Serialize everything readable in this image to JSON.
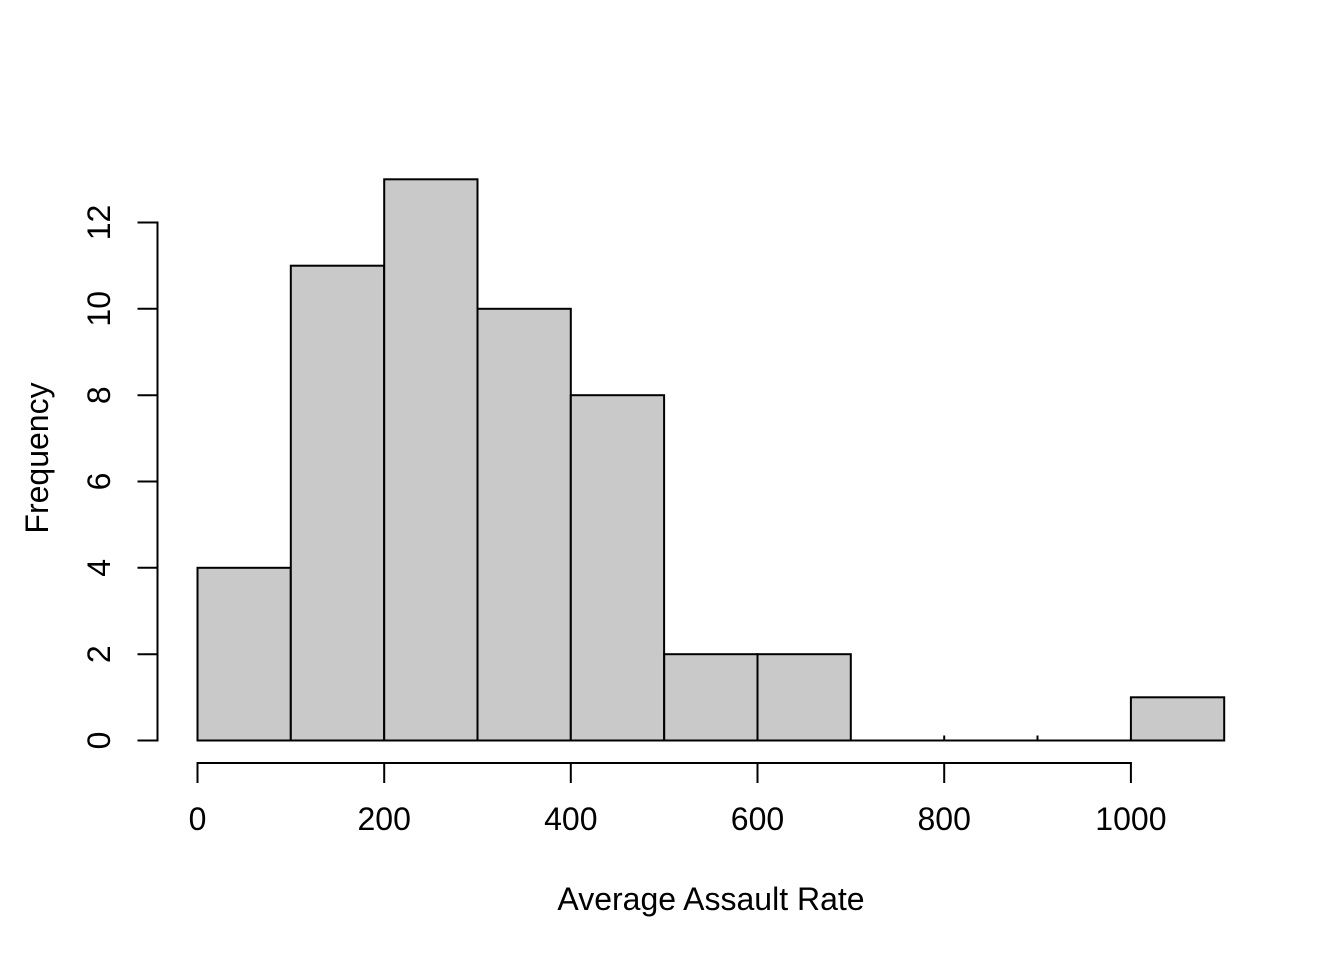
{
  "figure": {
    "background": "#FFFFFF"
  },
  "chart_data": {
    "type": "bar",
    "subtype": "histogram",
    "title": "",
    "xlabel": "Average Assault Rate",
    "ylabel": "Frequency",
    "bin_width": 100,
    "bin_edges": [
      0,
      100,
      200,
      300,
      400,
      500,
      600,
      700,
      800,
      900,
      1000,
      1100
    ],
    "counts": [
      4,
      11,
      13,
      10,
      8,
      2,
      2,
      0,
      0,
      0,
      1
    ],
    "x_ticks": [
      0,
      200,
      400,
      600,
      800,
      1000
    ],
    "y_ticks": [
      0,
      2,
      4,
      6,
      8,
      10,
      12
    ],
    "xlim": [
      0,
      1100
    ],
    "ylim": [
      0,
      13
    ],
    "grid": false,
    "legend": "none",
    "colors": {
      "bar_fill": "#C9C9C9",
      "bar_border": "#000000",
      "axis": "#000000",
      "text": "#000000",
      "background": "#FFFFFF"
    }
  }
}
